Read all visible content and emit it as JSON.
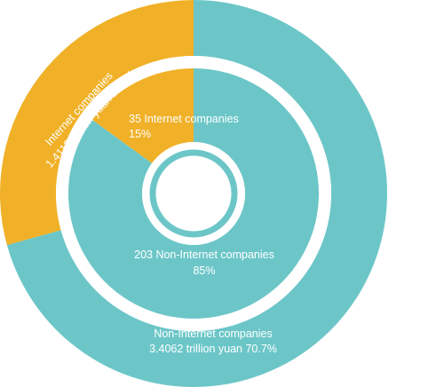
{
  "chart_data": [
    {
      "type": "pie",
      "ring": "outer",
      "unit": "trillion yuan",
      "slices": [
        {
          "name": "Internet companies",
          "value": 1.4113,
          "percent": 29.3,
          "label_line1": "Internet companies",
          "label_line2": "1.4113 trillion yuan  29.3%"
        },
        {
          "name": "Non-Internet companies",
          "value": 3.4062,
          "percent": 70.7,
          "label_line1": "Non-Internet companies",
          "label_line2": "3.4062 trillion yuan  70.7%"
        }
      ]
    },
    {
      "type": "pie",
      "ring": "inner",
      "slices": [
        {
          "name": "Internet companies",
          "count": 35,
          "percent": 15,
          "label_line1": "35 Internet companies",
          "label_line2": "15%"
        },
        {
          "name": "Non-Internet companies",
          "count": 203,
          "percent": 85,
          "label_line1": "203 Non-Internet companies",
          "label_line2": "85%"
        }
      ]
    }
  ],
  "colors": {
    "internet": "#f0b128",
    "non_internet": "#6cc6c8",
    "background": "#ffffff"
  }
}
